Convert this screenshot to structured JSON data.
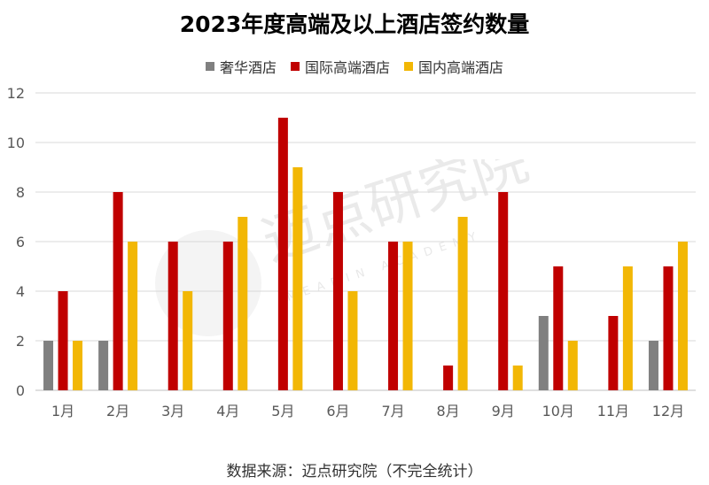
{
  "title": "2023年度高端及以上酒店签约数量",
  "source_note": "数据来源：迈点研究院（不完全统计）",
  "watermark": {
    "text": "迈点研究院",
    "subtext": "MEADIN ACADEMY"
  },
  "chart_data": {
    "type": "bar",
    "title": "2023年度高端及以上酒店签约数量",
    "categories": [
      "1月",
      "2月",
      "3月",
      "4月",
      "5月",
      "6月",
      "7月",
      "8月",
      "9月",
      "10月",
      "11月",
      "12月"
    ],
    "series": [
      {
        "name": "奢华酒店",
        "color": "#808080",
        "values": [
          2,
          2,
          0,
          0,
          0,
          0,
          0,
          0,
          0,
          3,
          0,
          2
        ]
      },
      {
        "name": "国际高端酒店",
        "color": "#C00000",
        "values": [
          4,
          8,
          6,
          6,
          11,
          8,
          6,
          1,
          8,
          5,
          3,
          5
        ]
      },
      {
        "name": "国内高端酒店",
        "color": "#F2B705",
        "values": [
          2,
          6,
          4,
          7,
          9,
          4,
          6,
          7,
          1,
          2,
          5,
          6
        ]
      }
    ],
    "ylim": [
      0,
      12
    ],
    "yticks": [
      0,
      2,
      4,
      6,
      8,
      10,
      12
    ],
    "grid": true,
    "legend_position": "top"
  }
}
